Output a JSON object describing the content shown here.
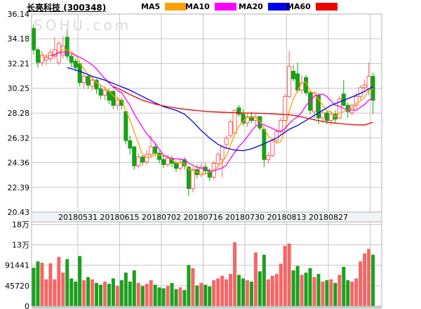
{
  "header": {
    "title": "长亮科技",
    "code": "(300348)",
    "legend": {
      "items": [
        {
          "label": "MA5",
          "color": "#ffa000"
        },
        {
          "label": "MA10",
          "color": "#ff00ff"
        },
        {
          "label": "MA20",
          "color": "#0000f0"
        },
        {
          "label": "MA60",
          "color": "#ee0000"
        }
      ]
    }
  },
  "watermark": "SOHU.com",
  "chart_data": {
    "type": "candlestick",
    "title": "长亮科技 (300348) 日K线",
    "price_axis": {
      "min": 20.43,
      "max": 36.14,
      "tick_labels": [
        "36.14",
        "34.18",
        "32.21",
        "30.25",
        "28.28",
        "26.32",
        "24.36",
        "22.39",
        "20.43"
      ],
      "tick_values": [
        36.14,
        34.18,
        32.21,
        30.25,
        28.28,
        26.32,
        24.36,
        22.39,
        20.43
      ]
    },
    "volume_axis": {
      "max": 182880,
      "ticks": [
        {
          "label": "18万",
          "value": 182880
        },
        {
          "label": "13万",
          "value": 137160
        },
        {
          "label": "91441",
          "value": 91441
        },
        {
          "label": "45720",
          "value": 45720
        },
        {
          "label": "0",
          "value": 0
        }
      ]
    },
    "x_axis": {
      "tick_labels": [
        "20180531",
        "20180615",
        "20180702",
        "20180716",
        "20180730",
        "20180813",
        "20180827"
      ],
      "candles_per_tick": 10,
      "grid": true
    },
    "colors": {
      "up": "#f56060",
      "down": "#17a217",
      "volume_up": "#f56666",
      "volume_down": "#1ca01c",
      "grid": "#c6c6c6",
      "border": "#b0b0b0",
      "date_strip_bg": "#f1f4f7",
      "label": "#000000",
      "ma5": "#ffa000",
      "ma10": "#ff00ff",
      "ma20": "#0000f0",
      "ma60": "#ee0000"
    },
    "candles_format": [
      "open",
      "high",
      "low",
      "close",
      "volume"
    ],
    "candles": [
      [
        35.0,
        35.3,
        32.9,
        33.3,
        86000
      ],
      [
        33.3,
        33.5,
        31.9,
        32.3,
        100000
      ],
      [
        32.3,
        33.2,
        32.0,
        32.9,
        97000
      ],
      [
        32.5,
        33.0,
        32.1,
        32.7,
        60000
      ],
      [
        32.6,
        33.4,
        32.3,
        33.1,
        96000
      ],
      [
        32.8,
        34.3,
        32.6,
        33.3,
        60000
      ],
      [
        32.3,
        34.0,
        32.1,
        33.8,
        110000
      ],
      [
        32.9,
        34.4,
        32.6,
        33.6,
        75000
      ],
      [
        34.3,
        34.9,
        32.5,
        32.8,
        105000
      ],
      [
        32.8,
        33.0,
        31.9,
        32.3,
        62000
      ],
      [
        32.4,
        32.6,
        31.6,
        31.9,
        55000
      ],
      [
        32.2,
        32.4,
        30.4,
        30.7,
        112000
      ],
      [
        30.7,
        31.5,
        30.2,
        31.2,
        58000
      ],
      [
        31.2,
        31.4,
        30.2,
        30.5,
        65000
      ],
      [
        30.4,
        31.2,
        30.1,
        30.9,
        60000
      ],
      [
        30.9,
        31.0,
        29.8,
        30.2,
        52000
      ],
      [
        30.2,
        30.5,
        29.4,
        29.7,
        48000
      ],
      [
        29.7,
        30.4,
        29.3,
        30.1,
        55000
      ],
      [
        30.0,
        30.2,
        29.0,
        29.3,
        50000
      ],
      [
        30.0,
        30.1,
        28.6,
        28.9,
        62000
      ],
      [
        28.9,
        29.6,
        28.5,
        29.3,
        45000
      ],
      [
        29.3,
        29.5,
        28.6,
        28.9,
        58000
      ],
      [
        28.4,
        28.5,
        25.8,
        26.1,
        75000
      ],
      [
        26.1,
        26.5,
        25.0,
        25.5,
        55000
      ],
      [
        25.6,
        25.7,
        23.8,
        24.1,
        80000
      ],
      [
        24.1,
        25.1,
        23.9,
        24.8,
        52000
      ],
      [
        24.8,
        25.0,
        24.1,
        24.4,
        45000
      ],
      [
        24.4,
        25.3,
        24.2,
        25.0,
        50000
      ],
      [
        25.0,
        26.5,
        24.8,
        25.6,
        58000
      ],
      [
        25.6,
        25.9,
        24.9,
        25.1,
        48000
      ],
      [
        25.1,
        25.3,
        24.3,
        24.6,
        42000
      ],
      [
        24.6,
        24.9,
        23.9,
        24.2,
        40000
      ],
      [
        24.2,
        25.0,
        24.0,
        24.7,
        45000
      ],
      [
        24.7,
        24.9,
        24.0,
        24.3,
        52000
      ],
      [
        24.3,
        24.5,
        23.6,
        23.9,
        38000
      ],
      [
        23.9,
        24.7,
        23.7,
        24.4,
        42000
      ],
      [
        24.6,
        24.8,
        23.8,
        24.1,
        36000
      ],
      [
        24.0,
        24.1,
        21.7,
        22.3,
        92000
      ],
      [
        22.3,
        24.0,
        22.0,
        23.8,
        85000
      ],
      [
        23.8,
        24.2,
        23.1,
        23.4,
        46000
      ],
      [
        23.4,
        24.3,
        23.2,
        24.0,
        52000
      ],
      [
        24.0,
        24.3,
        23.4,
        23.7,
        48000
      ],
      [
        23.7,
        23.9,
        22.9,
        23.2,
        44000
      ],
      [
        23.2,
        24.5,
        23.0,
        24.3,
        58000
      ],
      [
        24.3,
        25.2,
        24.1,
        25.0,
        62000
      ],
      [
        24.6,
        25.7,
        23.2,
        25.6,
        68000
      ],
      [
        25.8,
        26.5,
        25.5,
        26.3,
        60000
      ],
      [
        26.5,
        27.8,
        26.3,
        27.6,
        72000
      ],
      [
        26.7,
        28.6,
        26.6,
        28.5,
        143000
      ],
      [
        28.7,
        28.9,
        28.0,
        28.2,
        70000
      ],
      [
        28.2,
        28.6,
        27.3,
        27.5,
        62000
      ],
      [
        27.5,
        28.3,
        27.2,
        28.0,
        58000
      ],
      [
        28.0,
        28.4,
        27.5,
        27.7,
        55000
      ],
      [
        27.7,
        28.2,
        27.3,
        28.0,
        120000
      ],
      [
        28.0,
        28.1,
        26.9,
        27.1,
        78000
      ],
      [
        27.0,
        27.1,
        24.0,
        24.6,
        115000
      ],
      [
        24.6,
        25.2,
        24.3,
        24.9,
        60000
      ],
      [
        24.9,
        26.3,
        24.8,
        26.1,
        68000
      ],
      [
        26.1,
        27.0,
        25.9,
        26.8,
        72000
      ],
      [
        26.8,
        27.9,
        26.6,
        27.7,
        95000
      ],
      [
        27.7,
        29.8,
        27.6,
        29.6,
        135000
      ],
      [
        29.6,
        33.2,
        29.5,
        32.0,
        140000
      ],
      [
        31.6,
        32.1,
        30.8,
        31.0,
        80000
      ],
      [
        31.4,
        32.3,
        29.9,
        30.1,
        90000
      ],
      [
        30.1,
        31.3,
        29.8,
        30.7,
        70000
      ],
      [
        31.1,
        31.3,
        29.7,
        29.9,
        75000
      ],
      [
        29.9,
        30.1,
        28.2,
        28.5,
        85000
      ],
      [
        28.4,
        30.0,
        27.8,
        29.9,
        65000
      ],
      [
        29.7,
        29.9,
        27.4,
        27.9,
        72000
      ],
      [
        27.9,
        28.6,
        27.5,
        28.3,
        55000
      ],
      [
        28.3,
        28.5,
        27.4,
        27.7,
        58000
      ],
      [
        27.7,
        28.4,
        27.3,
        28.2,
        60000
      ],
      [
        28.2,
        28.5,
        27.5,
        27.8,
        52000
      ],
      [
        27.9,
        29.6,
        27.8,
        29.4,
        70000
      ],
      [
        29.8,
        30.9,
        28.8,
        28.9,
        88000
      ],
      [
        28.9,
        29.1,
        27.9,
        28.4,
        58000
      ],
      [
        28.3,
        29.0,
        28.1,
        28.9,
        55000
      ],
      [
        28.9,
        29.9,
        28.6,
        29.6,
        62000
      ],
      [
        29.6,
        30.5,
        29.3,
        30.3,
        100000
      ],
      [
        30.3,
        30.9,
        29.9,
        30.5,
        118000
      ],
      [
        30.2,
        32.3,
        29.7,
        31.2,
        128000
      ],
      [
        31.2,
        31.5,
        28.2,
        29.3,
        115000
      ]
    ],
    "moving_averages": {
      "ma5": {
        "period": 5,
        "computed_from_closes": true
      },
      "ma10": {
        "period": 10,
        "computed_from_closes": true
      },
      "ma20": {
        "period": 20,
        "points": [
          [
            8,
            31.9
          ],
          [
            11,
            31.6
          ],
          [
            14,
            31.2
          ],
          [
            17,
            30.9
          ],
          [
            20,
            30.5
          ],
          [
            23,
            30.1
          ],
          [
            26,
            29.6
          ],
          [
            29,
            29.1
          ],
          [
            31,
            28.8
          ],
          [
            34,
            28.5
          ],
          [
            36,
            28.2
          ],
          [
            38,
            27.6
          ],
          [
            40,
            26.9
          ],
          [
            42,
            26.3
          ],
          [
            44,
            25.8
          ],
          [
            46,
            25.5
          ],
          [
            48,
            25.35
          ],
          [
            50,
            25.3
          ],
          [
            52,
            25.45
          ],
          [
            55,
            25.85
          ],
          [
            58,
            26.3
          ],
          [
            61,
            27.0
          ],
          [
            63,
            27.3
          ],
          [
            66,
            27.9
          ],
          [
            68,
            28.3
          ],
          [
            71,
            28.9
          ],
          [
            74,
            29.3
          ],
          [
            77,
            29.7
          ],
          [
            79,
            30.0
          ],
          [
            81,
            30.4
          ]
        ]
      },
      "ma60": {
        "period": 60,
        "points": [
          [
            19,
            30.4
          ],
          [
            21,
            30.1
          ],
          [
            23,
            29.75
          ],
          [
            26,
            29.3
          ],
          [
            29,
            29.0
          ],
          [
            31,
            28.85
          ],
          [
            34,
            28.68
          ],
          [
            37,
            28.55
          ],
          [
            40,
            28.45
          ],
          [
            43,
            28.38
          ],
          [
            46,
            28.34
          ],
          [
            49,
            28.3
          ],
          [
            52,
            28.28
          ],
          [
            55,
            28.25
          ],
          [
            58,
            28.2
          ],
          [
            61,
            28.15
          ],
          [
            63,
            28.05
          ],
          [
            65,
            27.9
          ],
          [
            67,
            27.75
          ],
          [
            69,
            27.62
          ],
          [
            71,
            27.52
          ],
          [
            74,
            27.42
          ],
          [
            77,
            27.35
          ],
          [
            79,
            27.35
          ],
          [
            81,
            27.55
          ]
        ]
      }
    }
  }
}
